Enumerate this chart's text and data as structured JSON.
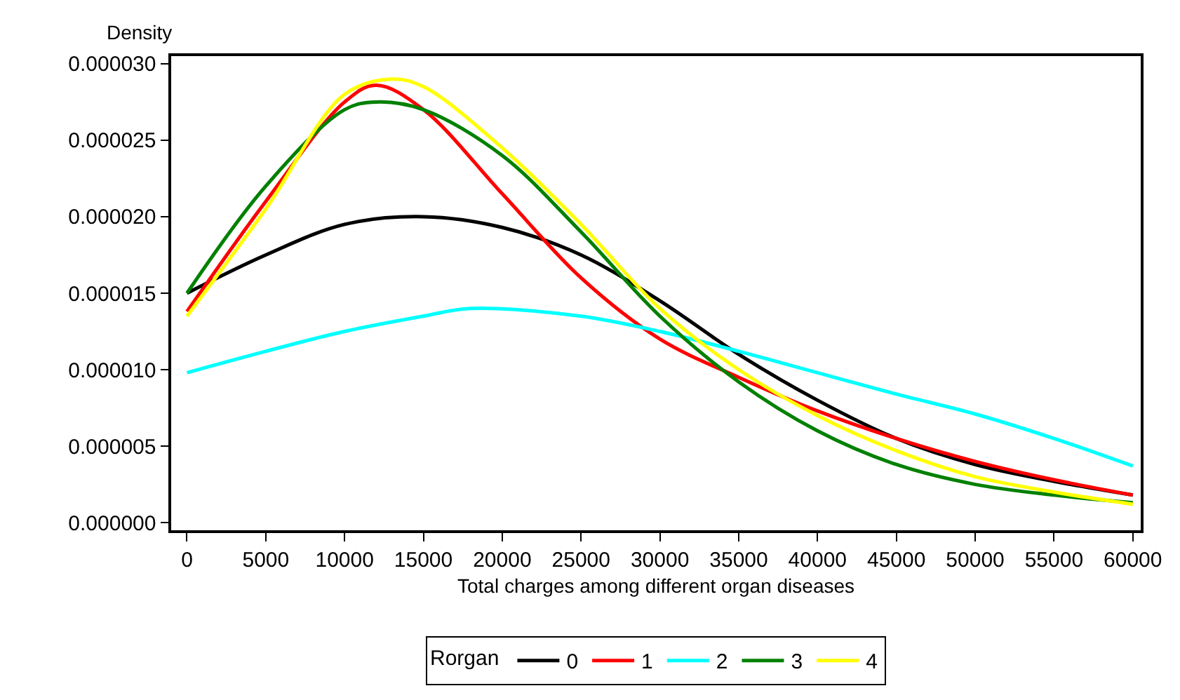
{
  "chart_data": {
    "type": "line",
    "xlabel": "Total charges among different organ diseases",
    "ylabel": "Density",
    "legend_title": "Rorgan",
    "xlim": [
      -1000,
      60500
    ],
    "xticks": [
      0,
      5000,
      10000,
      15000,
      20000,
      25000,
      30000,
      35000,
      40000,
      45000,
      50000,
      55000,
      60000
    ],
    "ylim": [
      -5e-07,
      3.05e-05
    ],
    "yticks": [
      {
        "value": 0,
        "label": "0.000000"
      },
      {
        "value": 5e-06,
        "label": "0.000005"
      },
      {
        "value": 1e-05,
        "label": "0.000010"
      },
      {
        "value": 1.5e-05,
        "label": "0.000015"
      },
      {
        "value": 2e-05,
        "label": "0.000020"
      },
      {
        "value": 2.5e-05,
        "label": "0.000025"
      },
      {
        "value": 3e-05,
        "label": "0.000030"
      }
    ],
    "legend": "bottom",
    "marker": "none",
    "line_style": "solid",
    "series": [
      {
        "name": "0",
        "color": "#000000",
        "x": [
          0,
          5000,
          10000,
          15000,
          20000,
          25000,
          30000,
          35000,
          40000,
          45000,
          50000,
          55000,
          60000
        ],
        "values": [
          1.5e-05,
          1.75e-05,
          1.95e-05,
          2e-05,
          1.93e-05,
          1.75e-05,
          1.45e-05,
          1.1e-05,
          8e-06,
          5.5e-06,
          3.8e-06,
          2.7e-06,
          1.8e-06
        ]
      },
      {
        "name": "1",
        "color": "#ff0000",
        "x": [
          0,
          5000,
          10000,
          12000,
          15000,
          20000,
          25000,
          30000,
          35000,
          40000,
          45000,
          50000,
          55000,
          60000
        ],
        "values": [
          1.38e-05,
          2.1e-05,
          2.75e-05,
          2.86e-05,
          2.7e-05,
          2.15e-05,
          1.6e-05,
          1.2e-05,
          9.5e-06,
          7.3e-06,
          5.5e-06,
          4e-06,
          2.8e-06,
          1.8e-06
        ]
      },
      {
        "name": "2",
        "color": "#00ffff",
        "x": [
          0,
          5000,
          10000,
          15000,
          18000,
          25000,
          30000,
          35000,
          40000,
          45000,
          50000,
          55000,
          60000
        ],
        "values": [
          9.8e-06,
          1.12e-05,
          1.25e-05,
          1.35e-05,
          1.4e-05,
          1.35e-05,
          1.25e-05,
          1.12e-05,
          9.8e-06,
          8.4e-06,
          7.1e-06,
          5.5e-06,
          3.7e-06
        ]
      },
      {
        "name": "3",
        "color": "#008000",
        "x": [
          0,
          5000,
          10000,
          12000,
          15000,
          20000,
          25000,
          30000,
          35000,
          40000,
          45000,
          50000,
          55000,
          60000
        ],
        "values": [
          1.5e-05,
          2.2e-05,
          2.7e-05,
          2.75e-05,
          2.7e-05,
          2.4e-05,
          1.9e-05,
          1.35e-05,
          9.2e-06,
          6e-06,
          3.8e-06,
          2.5e-06,
          1.8e-06,
          1.3e-06
        ]
      },
      {
        "name": "4",
        "color": "#ffff00",
        "x": [
          0,
          5000,
          10000,
          13000,
          15000,
          20000,
          25000,
          30000,
          35000,
          40000,
          45000,
          50000,
          55000,
          60000
        ],
        "values": [
          1.35e-05,
          2.05e-05,
          2.8e-05,
          2.9e-05,
          2.85e-05,
          2.45e-05,
          1.95e-05,
          1.4e-05,
          1e-05,
          7e-06,
          4.7e-06,
          3e-06,
          2e-06,
          1.2e-06
        ]
      }
    ]
  }
}
